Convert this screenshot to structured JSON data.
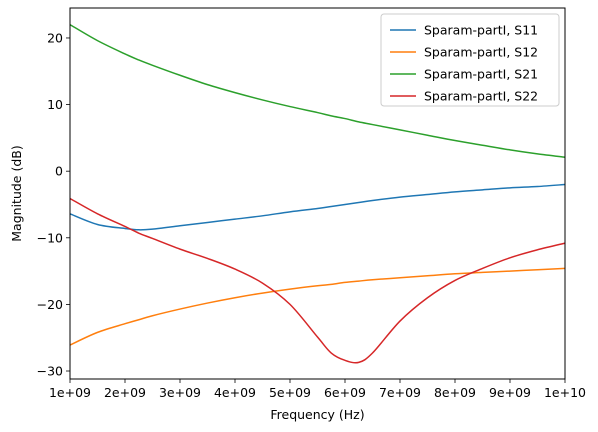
{
  "chart_data": {
    "type": "line",
    "xlabel": "Frequency (Hz)",
    "ylabel": "Magnitude (dB)",
    "xlim": [
      1000000000,
      10000000000
    ],
    "ylim": [
      -31.2,
      24.5
    ],
    "x_ticks": [
      "1e+09",
      "2e+09",
      "3e+09",
      "4e+09",
      "5e+09",
      "6e+09",
      "7e+09",
      "8e+09",
      "9e+09",
      "1e+10"
    ],
    "y_ticks": [
      -30,
      -20,
      -10,
      0,
      10,
      20
    ],
    "grid": false,
    "legend_position": "top-right",
    "x": [
      1000000000,
      1500000000,
      2000000000,
      2250000000,
      2500000000,
      3000000000,
      3500000000,
      4000000000,
      4500000000,
      5000000000,
      5500000000,
      5750000000,
      6000000000,
      6250000000,
      6500000000,
      7000000000,
      7500000000,
      8000000000,
      8500000000,
      9000000000,
      9500000000,
      10000000000
    ],
    "series": [
      {
        "name": "Sparam-partI, S11",
        "color": "#1f77b4",
        "values": [
          -6.4,
          -8.0,
          -8.6,
          -8.8,
          -8.7,
          -8.2,
          -7.7,
          -7.2,
          -6.7,
          -6.1,
          -5.6,
          -5.3,
          -5.0,
          -4.7,
          -4.4,
          -3.9,
          -3.5,
          -3.1,
          -2.8,
          -2.5,
          -2.3,
          -2.0
        ]
      },
      {
        "name": "Sparam-partI, S12",
        "color": "#ff7f0e",
        "values": [
          -26.1,
          -24.2,
          -22.9,
          -22.3,
          -21.7,
          -20.7,
          -19.8,
          -19.0,
          -18.3,
          -17.7,
          -17.2,
          -17.0,
          -16.7,
          -16.5,
          -16.3,
          -16.0,
          -15.7,
          -15.4,
          -15.2,
          -15.0,
          -14.8,
          -14.6
        ]
      },
      {
        "name": "Sparam-partI, S21",
        "color": "#2ca02c",
        "values": [
          22.0,
          19.6,
          17.6,
          16.7,
          15.9,
          14.4,
          13.0,
          11.8,
          10.7,
          9.7,
          8.8,
          8.3,
          7.9,
          7.4,
          7.0,
          6.2,
          5.4,
          4.6,
          3.9,
          3.2,
          2.6,
          2.1
        ]
      },
      {
        "name": "Sparam-partI, S22",
        "color": "#d62728",
        "values": [
          -4.1,
          -6.4,
          -8.3,
          -9.3,
          -10.1,
          -11.7,
          -13.1,
          -14.7,
          -16.8,
          -20.0,
          -24.9,
          -27.3,
          -28.4,
          -28.7,
          -27.3,
          -22.5,
          -19.0,
          -16.4,
          -14.6,
          -13.0,
          -11.8,
          -10.8
        ]
      }
    ]
  }
}
